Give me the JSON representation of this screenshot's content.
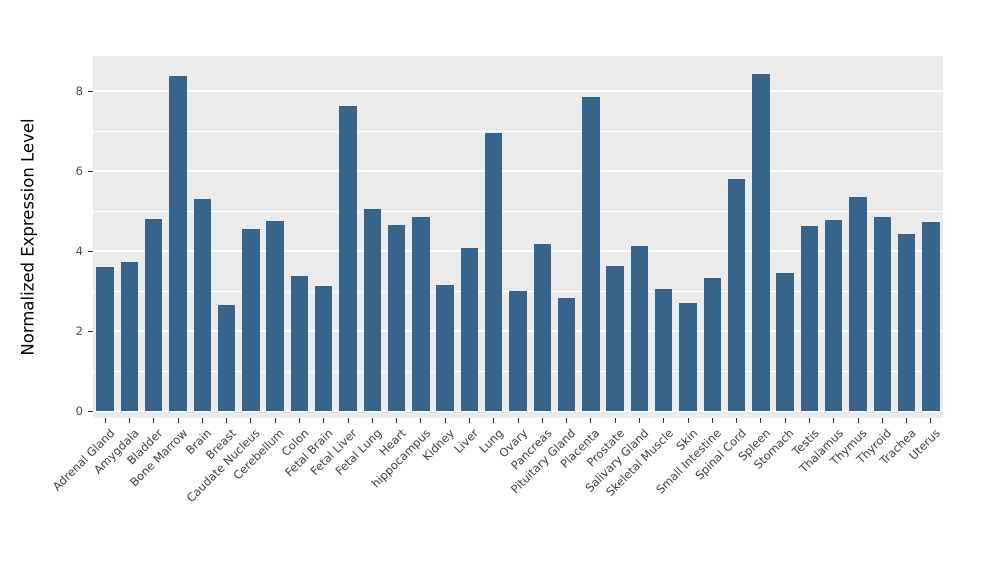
{
  "chart_data": {
    "type": "bar",
    "title": "",
    "xlabel": "",
    "ylabel": "Normalized Expression Level",
    "categories": [
      "Adrenal Gland",
      "Amygdala",
      "Bladder",
      "Bone Marrow",
      "Brain",
      "Breast",
      "Caudate Nucleus",
      "Cerebellum",
      "Colon",
      "Fetal Brain",
      "Fetal Liver",
      "Fetal Lung",
      "Heart",
      "hippocampus",
      "Kidney",
      "Liver",
      "Lung",
      "Ovary",
      "Pancreas",
      "Pituitary Gland",
      "Placenta",
      "Prostate",
      "Salivary Gland",
      "Skeletal Muscle",
      "Skin",
      "Small Intestine",
      "Spinal Cord",
      "Spleen",
      "Stomach",
      "Testis",
      "Thalamus",
      "Thymus",
      "Thyroid",
      "Trachea",
      "Uterus"
    ],
    "values": [
      3.6,
      3.72,
      4.8,
      8.38,
      5.3,
      2.64,
      4.56,
      4.74,
      3.38,
      3.12,
      7.62,
      5.06,
      4.66,
      4.84,
      3.14,
      4.08,
      6.94,
      3.0,
      4.18,
      2.82,
      7.84,
      3.62,
      4.12,
      3.04,
      2.7,
      3.32,
      5.8,
      8.42,
      3.44,
      4.62,
      4.78,
      5.34,
      4.86,
      4.42,
      4.72
    ],
    "ylim": [
      -0.175,
      8.875
    ],
    "yticks": [
      0,
      2,
      4,
      6,
      8
    ],
    "yminorticks": [
      1,
      3,
      5,
      7
    ],
    "legend": "none",
    "grid": "white major and minor horizontal gridlines",
    "bar_color": "#36648B",
    "panel_bg": "#EBEBEB",
    "tick_color": "#333333",
    "axis_text_color": "#404040"
  }
}
